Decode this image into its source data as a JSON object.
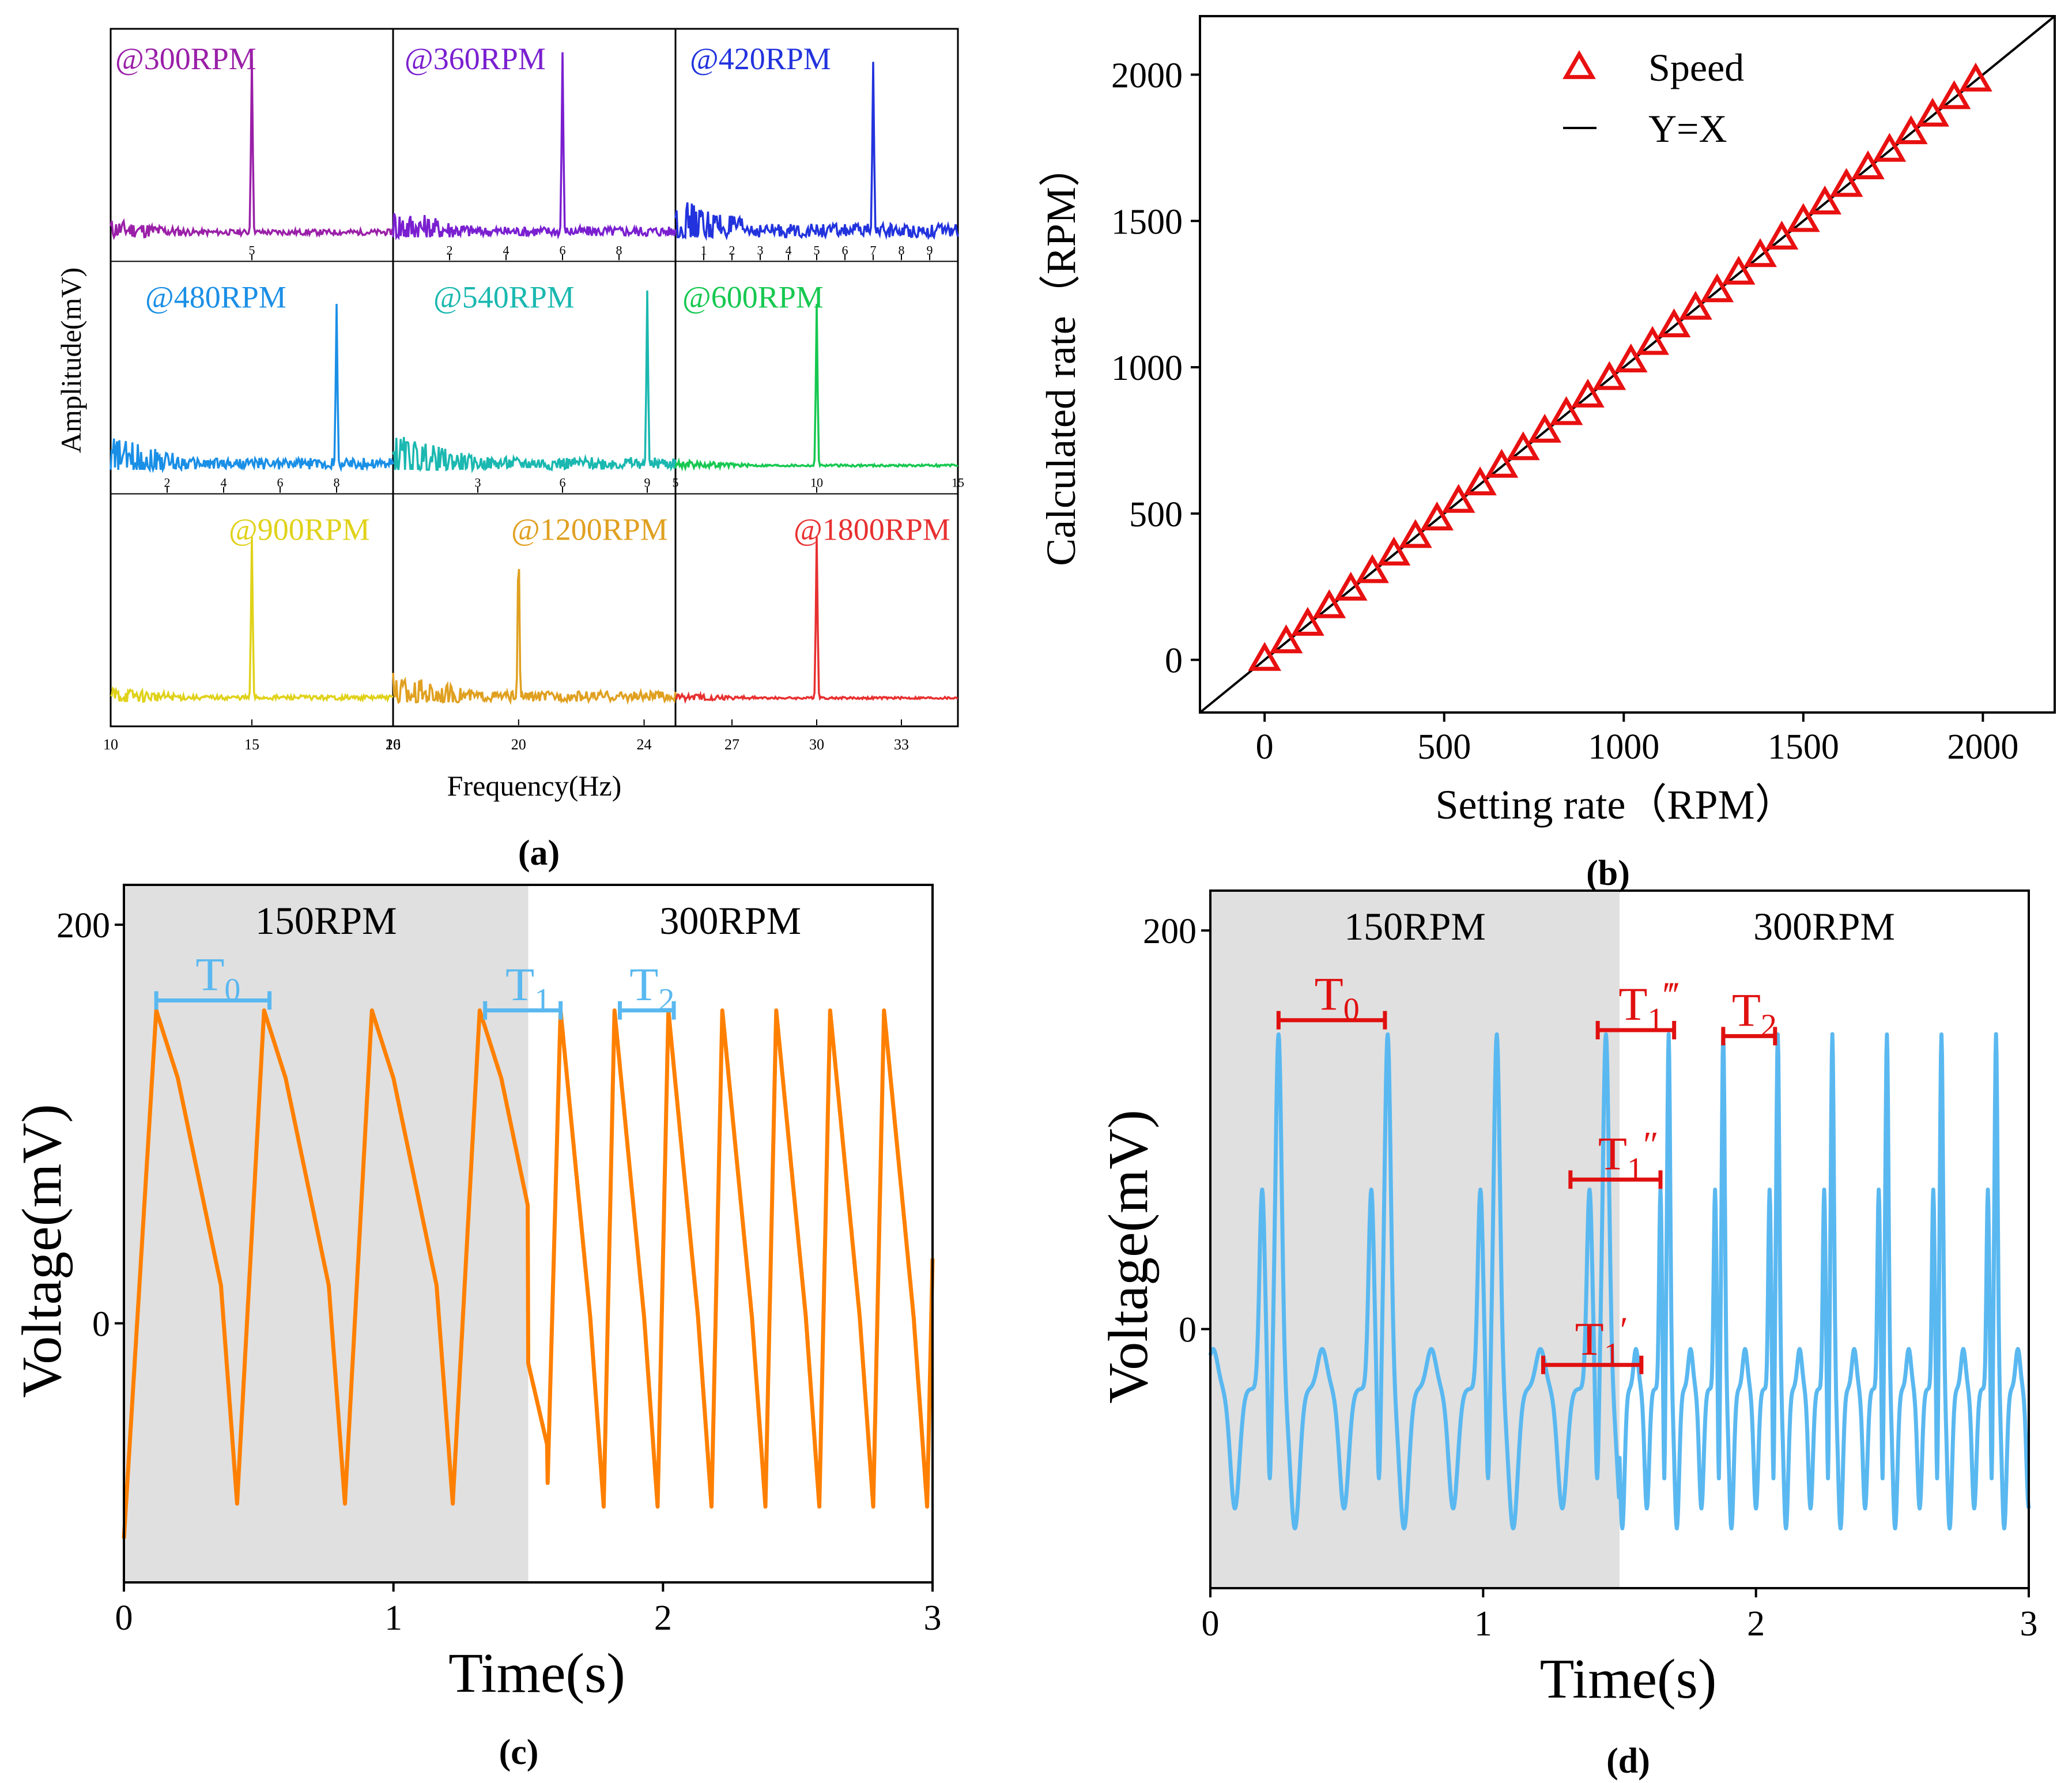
{
  "colors": {
    "spectrum_300": "#9a1fa8",
    "spectrum_360": "#7a1fd0",
    "spectrum_420": "#2233dd",
    "spectrum_480": "#1a8fe6",
    "spectrum_540": "#1ab8b0",
    "spectrum_600": "#16c850",
    "spectrum_900": "#e0d21a",
    "spectrum_1200": "#e0a020",
    "spectrum_1800": "#e83030",
    "speed_marker": "#e81010",
    "orange_wave": "#ff8000",
    "blue_wave": "#5ab8f0",
    "interval_blue": "#5ab8f0",
    "interval_red": "#e01010",
    "shade": "#e0e0e0"
  },
  "chart_data": [
    {
      "panel": "a",
      "type": "line",
      "caption": "(a)",
      "xlabel": "Frequency(Hz)",
      "ylabel": "Amplitude(mV)",
      "subplots": [
        {
          "label": "@300RPM",
          "peak_hz": 5,
          "xlim": [
            0,
            10
          ],
          "ticks": [
            "5"
          ],
          "tick_values": [
            5
          ],
          "peak_height": 0.92,
          "noise": 0.05
        },
        {
          "label": "@360RPM",
          "peak_hz": 6,
          "xlim": [
            0,
            10
          ],
          "ticks": [
            "2",
            "4",
            "6",
            "8"
          ],
          "tick_values": [
            2,
            4,
            6,
            8
          ],
          "peak_height": 0.95,
          "noise": 0.09
        },
        {
          "label": "@420RPM",
          "peak_hz": 7,
          "xlim": [
            0,
            10
          ],
          "ticks": [
            "1",
            "2",
            "3",
            "4",
            "5",
            "6",
            "7",
            "8",
            "9"
          ],
          "tick_values": [
            1,
            2,
            3,
            4,
            5,
            6,
            7,
            8,
            9
          ],
          "peak_height": 0.9,
          "noise": 0.12
        },
        {
          "label": "@480RPM",
          "peak_hz": 8,
          "xlim": [
            0,
            10
          ],
          "ticks": [
            "2",
            "4",
            "6",
            "8"
          ],
          "tick_values": [
            2,
            4,
            6,
            8
          ],
          "peak_height": 0.85,
          "noise": 0.1
        },
        {
          "label": "@540RPM",
          "peak_hz": 9,
          "xlim": [
            0,
            10
          ],
          "ticks": [
            "3",
            "6",
            "9"
          ],
          "tick_values": [
            3,
            6,
            9
          ],
          "peak_height": 0.92,
          "noise": 0.11
        },
        {
          "label": "@600RPM",
          "peak_hz": 10,
          "xlim": [
            5,
            15
          ],
          "ticks": [
            "5",
            "10",
            "15"
          ],
          "tick_values": [
            5,
            10,
            15
          ],
          "peak_height": 0.85,
          "noise": 0.02
        },
        {
          "label": "@900RPM",
          "peak_hz": 15,
          "xlim": [
            10,
            20
          ],
          "ticks": [
            "10",
            "15",
            "20"
          ],
          "tick_values": [
            10,
            15,
            20
          ],
          "peak_height": 0.85,
          "noise": 0.04
        },
        {
          "label": "@1200RPM",
          "peak_hz": 20,
          "xlim": [
            16,
            25
          ],
          "ticks": [
            "16",
            "20",
            "24"
          ],
          "tick_values": [
            16,
            20,
            24
          ],
          "peak_height": 0.8,
          "noise": 0.09
        },
        {
          "label": "@1800RPM",
          "peak_hz": 30,
          "xlim": [
            25,
            35
          ],
          "ticks": [
            "27",
            "30",
            "33"
          ],
          "tick_values": [
            27,
            30,
            33
          ],
          "peak_height": 0.85,
          "noise": 0.02
        }
      ]
    },
    {
      "panel": "b",
      "type": "scatter",
      "caption": "(b)",
      "xlabel": "Setting rate（RPM）",
      "ylabel": "Calculated rate（RPM）",
      "xlim": [
        -180,
        2200
      ],
      "ylim": [
        -180,
        2200
      ],
      "xticks": [
        0,
        500,
        1000,
        1500,
        2000
      ],
      "yticks": [
        0,
        500,
        1000,
        1500,
        2000
      ],
      "legend": {
        "position": "top-center",
        "entries": [
          "Speed",
          "Y=X"
        ]
      },
      "series": [
        {
          "name": "Speed",
          "marker": "triangle",
          "x": [
            0,
            60,
            120,
            180,
            240,
            300,
            360,
            420,
            480,
            540,
            600,
            660,
            720,
            780,
            840,
            900,
            960,
            1020,
            1080,
            1140,
            1200,
            1260,
            1320,
            1380,
            1440,
            1500,
            1560,
            1620,
            1680,
            1740,
            1800,
            1860,
            1920,
            1980
          ],
          "y": [
            0,
            60,
            120,
            180,
            240,
            300,
            360,
            420,
            480,
            540,
            600,
            660,
            720,
            780,
            840,
            900,
            960,
            1020,
            1080,
            1140,
            1200,
            1260,
            1320,
            1380,
            1440,
            1500,
            1560,
            1620,
            1680,
            1740,
            1800,
            1860,
            1920,
            1980
          ]
        },
        {
          "name": "Y=X",
          "type": "line",
          "x": [
            -180,
            2200
          ],
          "y": [
            -180,
            2200
          ]
        }
      ]
    },
    {
      "panel": "c",
      "type": "line",
      "caption": "(c)",
      "xlabel": "Time(s)",
      "ylabel": "Voltage(mV)",
      "xlim": [
        0,
        3
      ],
      "ylim": [
        -130,
        220
      ],
      "xticks": [
        0,
        1,
        2,
        3
      ],
      "yticks": [
        0,
        200
      ],
      "regions": [
        {
          "label": "150RPM",
          "x": [
            0,
            1.5
          ],
          "shaded": true
        },
        {
          "label": "300RPM",
          "x": [
            1.5,
            3
          ],
          "shaded": false
        }
      ],
      "period_150": 0.4,
      "period_300": 0.2,
      "peak_times_150": [
        0.12,
        0.52,
        0.92,
        1.32
      ],
      "peak_times_300": [
        1.62,
        1.82,
        2.02,
        2.22,
        2.42,
        2.62,
        2.82
      ],
      "peak_value": 157,
      "intervals": [
        {
          "name": "T",
          "sub": "0",
          "sup": "",
          "x": [
            0.12,
            0.54
          ],
          "y": 162
        },
        {
          "name": "T",
          "sub": "1",
          "sup": "",
          "x": [
            1.34,
            1.62
          ],
          "y": 157
        },
        {
          "name": "T",
          "sub": "2",
          "sup": "",
          "x": [
            1.84,
            2.04
          ],
          "y": 157
        }
      ]
    },
    {
      "panel": "d",
      "type": "line",
      "caption": "(d)",
      "xlabel": "Time(s)",
      "ylabel": "Voltage(mV)",
      "xlim": [
        0,
        3
      ],
      "ylim": [
        -130,
        220
      ],
      "xticks": [
        0,
        1,
        2,
        3
      ],
      "yticks": [
        0,
        200
      ],
      "regions": [
        {
          "label": "150RPM",
          "x": [
            0,
            1.5
          ],
          "shaded": true
        },
        {
          "label": "300RPM",
          "x": [
            1.5,
            3
          ],
          "shaded": false
        }
      ],
      "intervals": [
        {
          "name": "T",
          "sub": "0",
          "sup": "",
          "x": [
            0.25,
            0.64
          ],
          "y": 155
        },
        {
          "name": "T",
          "sub": "1",
          "sup": "‴",
          "x": [
            1.42,
            1.7
          ],
          "y": 150
        },
        {
          "name": "T",
          "sub": "2",
          "sup": "",
          "x": [
            1.88,
            2.07
          ],
          "y": 147
        },
        {
          "name": "T",
          "sub": "1",
          "sup": "″",
          "x": [
            1.32,
            1.65
          ],
          "y": 75
        },
        {
          "name": "T",
          "sub": "1",
          "sup": "′",
          "x": [
            1.22,
            1.58
          ],
          "y": -18
        }
      ]
    }
  ]
}
